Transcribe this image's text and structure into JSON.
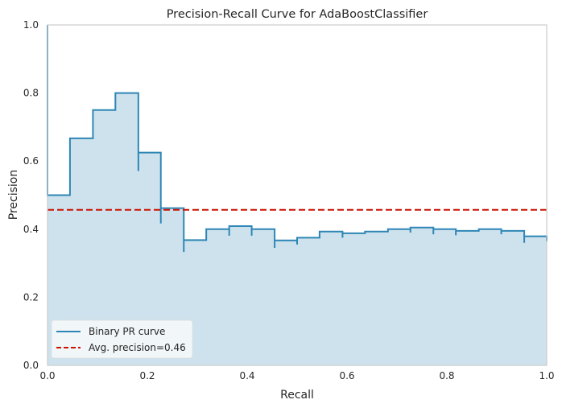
{
  "chart_data": {
    "type": "area",
    "title": "Precision-Recall Curve for AdaBoostClassifier",
    "xlabel": "Recall",
    "ylabel": "Precision",
    "xlim": [
      0,
      1
    ],
    "ylim": [
      0,
      1
    ],
    "xticks": [
      "0.0",
      "0.2",
      "0.4",
      "0.6",
      "0.8",
      "1.0"
    ],
    "yticks": [
      "0.0",
      "0.2",
      "0.4",
      "0.6",
      "0.8",
      "1.0"
    ],
    "grid": false,
    "legend_position": "lower-left",
    "series": [
      {
        "name": "Binary PR curve",
        "kind": "step",
        "color": "#2e86b5",
        "fill_color": "#cde2ed",
        "points": [
          [
            0.0,
            1.0
          ],
          [
            0.0,
            0.5
          ],
          [
            0.045,
            0.5
          ],
          [
            0.045,
            0.667
          ],
          [
            0.091,
            0.667
          ],
          [
            0.091,
            0.75
          ],
          [
            0.136,
            0.75
          ],
          [
            0.136,
            0.8
          ],
          [
            0.182,
            0.8
          ],
          [
            0.182,
            0.571
          ],
          [
            0.182,
            0.625
          ],
          [
            0.227,
            0.625
          ],
          [
            0.227,
            0.417
          ],
          [
            0.227,
            0.462
          ],
          [
            0.273,
            0.462
          ],
          [
            0.273,
            0.333
          ],
          [
            0.273,
            0.368
          ],
          [
            0.318,
            0.368
          ],
          [
            0.318,
            0.4
          ],
          [
            0.364,
            0.4
          ],
          [
            0.364,
            0.381
          ],
          [
            0.364,
            0.409
          ],
          [
            0.409,
            0.409
          ],
          [
            0.409,
            0.381
          ],
          [
            0.409,
            0.4
          ],
          [
            0.455,
            0.4
          ],
          [
            0.455,
            0.345
          ],
          [
            0.455,
            0.367
          ],
          [
            0.5,
            0.367
          ],
          [
            0.5,
            0.355
          ],
          [
            0.5,
            0.375
          ],
          [
            0.545,
            0.375
          ],
          [
            0.545,
            0.393
          ],
          [
            0.591,
            0.393
          ],
          [
            0.591,
            0.375
          ],
          [
            0.591,
            0.388
          ],
          [
            0.636,
            0.388
          ],
          [
            0.636,
            0.393
          ],
          [
            0.682,
            0.393
          ],
          [
            0.682,
            0.4
          ],
          [
            0.727,
            0.4
          ],
          [
            0.727,
            0.39
          ],
          [
            0.727,
            0.405
          ],
          [
            0.773,
            0.405
          ],
          [
            0.773,
            0.385
          ],
          [
            0.773,
            0.4
          ],
          [
            0.818,
            0.4
          ],
          [
            0.818,
            0.382
          ],
          [
            0.818,
            0.395
          ],
          [
            0.864,
            0.395
          ],
          [
            0.864,
            0.4
          ],
          [
            0.909,
            0.4
          ],
          [
            0.909,
            0.385
          ],
          [
            0.909,
            0.395
          ],
          [
            0.955,
            0.395
          ],
          [
            0.955,
            0.36
          ],
          [
            0.955,
            0.379
          ],
          [
            1.0,
            0.379
          ],
          [
            1.0,
            0.365
          ]
        ]
      },
      {
        "name": "Avg. precision=0.46",
        "kind": "hline",
        "color": "#cc1100",
        "value": 0.457
      }
    ]
  }
}
